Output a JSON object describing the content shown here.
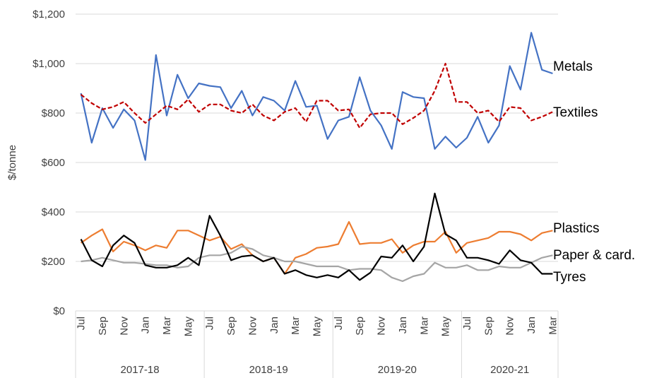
{
  "chart_data": {
    "type": "line",
    "y_label": "$/tonne",
    "categories": [
      "Jul",
      null,
      "Sep",
      null,
      "Nov",
      null,
      "Jan",
      null,
      "Mar",
      null,
      "May",
      null,
      "Jul",
      null,
      "Sep",
      null,
      "Nov",
      null,
      "Jan",
      null,
      "Mar",
      null,
      "May",
      null,
      "Jul",
      null,
      "Sep",
      null,
      "Nov",
      null,
      "Jan",
      null,
      "Mar",
      null,
      "May",
      null,
      "Jul",
      null,
      "Sep",
      null,
      "Nov",
      null,
      "Jan",
      null,
      "Mar"
    ],
    "groups": [
      "2017-18",
      "2018-19",
      "2019-20",
      "2020-21"
    ],
    "ylim": [
      0,
      1200
    ],
    "yticks": [
      {
        "value": 0,
        "label": "$0"
      },
      {
        "value": 200,
        "label": "$200"
      },
      {
        "value": 400,
        "label": "$400"
      },
      {
        "value": 600,
        "label": "$600"
      },
      {
        "value": 800,
        "label": "$800"
      },
      {
        "value": 1000,
        "label": "$1,000"
      },
      {
        "value": 1200,
        "label": "$1,200"
      }
    ],
    "grid": true,
    "series": [
      {
        "name": "Metals",
        "color": "#4472c4",
        "dashed": false,
        "values": [
          880,
          680,
          820,
          740,
          815,
          770,
          610,
          1035,
          790,
          955,
          860,
          920,
          910,
          905,
          820,
          890,
          790,
          865,
          850,
          810,
          930,
          825,
          830,
          695,
          770,
          785,
          945,
          810,
          750,
          655,
          885,
          865,
          860,
          655,
          705,
          660,
          700,
          785,
          680,
          750,
          990,
          895,
          1125,
          975,
          960
        ]
      },
      {
        "name": "Textiles",
        "color": "#c00000",
        "dashed": true,
        "values": [
          875,
          840,
          815,
          825,
          845,
          800,
          760,
          795,
          830,
          815,
          855,
          805,
          835,
          835,
          810,
          800,
          835,
          790,
          770,
          805,
          820,
          765,
          850,
          850,
          810,
          815,
          740,
          795,
          800,
          800,
          755,
          780,
          810,
          890,
          1000,
          845,
          845,
          800,
          810,
          765,
          825,
          820,
          770,
          785,
          805
        ]
      },
      {
        "name": "Plastics",
        "color": "#ed7d31",
        "dashed": false,
        "values": [
          275,
          305,
          330,
          240,
          280,
          265,
          245,
          265,
          255,
          325,
          325,
          305,
          285,
          300,
          250,
          270,
          225,
          200,
          215,
          150,
          215,
          230,
          255,
          260,
          270,
          360,
          270,
          275,
          275,
          290,
          235,
          265,
          280,
          280,
          320,
          235,
          275,
          285,
          295,
          320,
          320,
          310,
          285,
          315,
          325
        ]
      },
      {
        "name": "Paper & card.",
        "color": "#a5a5a5",
        "dashed": false,
        "values": [
          200,
          205,
          215,
          205,
          195,
          195,
          190,
          185,
          185,
          175,
          180,
          215,
          225,
          225,
          235,
          260,
          250,
          225,
          215,
          200,
          200,
          190,
          180,
          180,
          180,
          165,
          170,
          170,
          165,
          135,
          120,
          140,
          150,
          195,
          175,
          175,
          185,
          165,
          165,
          180,
          175,
          175,
          195,
          215,
          225
        ]
      },
      {
        "name": "Tyres",
        "color": "#000000",
        "dashed": false,
        "values": [
          290,
          205,
          180,
          265,
          305,
          275,
          185,
          175,
          175,
          185,
          215,
          185,
          385,
          305,
          205,
          220,
          225,
          200,
          215,
          150,
          165,
          145,
          135,
          145,
          135,
          165,
          125,
          155,
          220,
          215,
          265,
          200,
          260,
          475,
          310,
          285,
          215,
          215,
          205,
          190,
          245,
          205,
          195,
          150,
          150
        ]
      }
    ]
  }
}
